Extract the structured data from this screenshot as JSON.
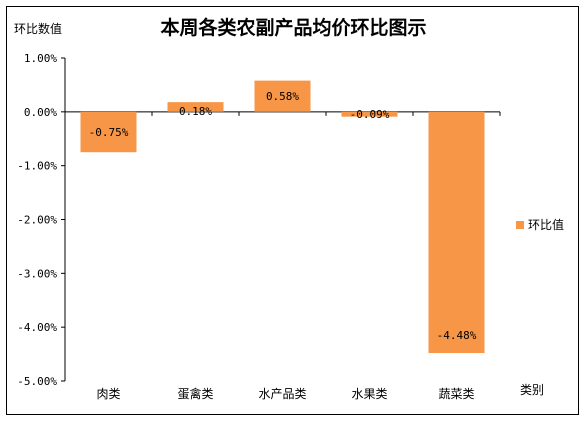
{
  "chart_data": {
    "type": "bar",
    "title": "本周各类农副产品均价环比图示",
    "ylabel": "环比数值",
    "xlabel": "类别",
    "categories": [
      "肉类",
      "蛋禽类",
      "水产品类",
      "水果类",
      "蔬菜类"
    ],
    "series": [
      {
        "name": "环比值",
        "values": [
          -0.75,
          0.18,
          0.58,
          -0.09,
          -4.48
        ],
        "data_labels": [
          "-0.75%",
          "0.18%",
          "0.58%",
          "-0.09%",
          "-4.48%"
        ],
        "color": "#F79646"
      }
    ],
    "ylim": [
      -5,
      1
    ],
    "yticks": [
      1,
      0,
      -1,
      -2,
      -3,
      -4,
      -5
    ],
    "ytick_labels": [
      "1.00%",
      "0.00%",
      "-1.00%",
      "-2.00%",
      "-3.00%",
      "-4.00%",
      "-5.00%"
    ],
    "grid": false,
    "legend_position": "right"
  }
}
